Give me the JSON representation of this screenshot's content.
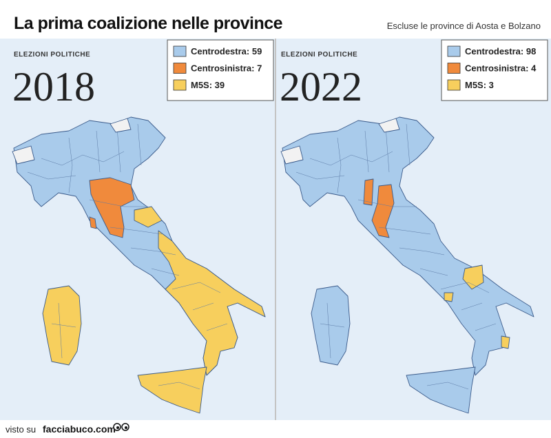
{
  "header": {
    "title": "La prima coalizione nelle province",
    "note": "Escluse le province di Aosta e Bolzano"
  },
  "maps": [
    {
      "label": "ELEZIONI POLITICHE",
      "year": "2018",
      "legend": [
        {
          "text": "Centrodestra: 59",
          "color": "#a9cbeb"
        },
        {
          "text": "Centrosinistra: 7",
          "color": "#f08a3c"
        },
        {
          "text": "M5S: 39",
          "color": "#f7cf5d"
        }
      ]
    },
    {
      "label": "ELEZIONI POLITICHE",
      "year": "2022",
      "legend": [
        {
          "text": "Centrodestra: 98",
          "color": "#a9cbeb"
        },
        {
          "text": "Centrosinistra: 4",
          "color": "#f08a3c"
        },
        {
          "text": "M5S: 3",
          "color": "#f7cf5d"
        }
      ]
    }
  ],
  "footer": {
    "prefix": "visto su",
    "site": "facciabuco.com"
  }
}
